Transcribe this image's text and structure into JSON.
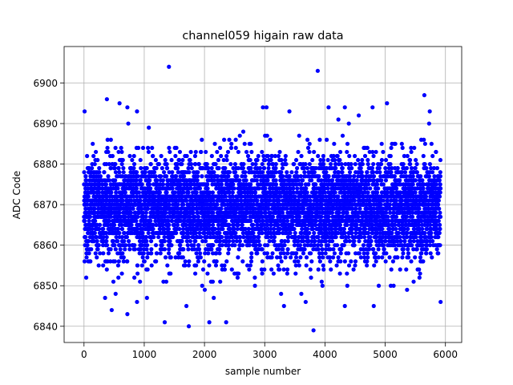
{
  "chart_data": {
    "type": "scatter",
    "title": "channel059 higain raw data",
    "xlabel": "sample number",
    "ylabel": "ADC Code",
    "xlim": [
      -330,
      6270
    ],
    "ylim": [
      6836,
      6909
    ],
    "xticks": [
      0,
      1000,
      2000,
      3000,
      4000,
      5000,
      6000
    ],
    "yticks": [
      6840,
      6850,
      6860,
      6870,
      6880,
      6890,
      6900
    ],
    "xtick_labels": [
      "0",
      "1000",
      "2000",
      "3000",
      "4000",
      "5000",
      "6000"
    ],
    "ytick_labels": [
      "6840",
      "6850",
      "6860",
      "6870",
      "6880",
      "6890",
      "6900"
    ],
    "grid": true,
    "marker_color": "#0000ff",
    "series": [
      {
        "num_points": 5920,
        "x_range": [
          0,
          5919
        ],
        "bulk_range": [
          6853,
          6886
        ],
        "center": 6869,
        "outliers": [
          {
            "x": 1410,
            "y": 6904
          },
          {
            "x": 3880,
            "y": 6903
          },
          {
            "x": 3810,
            "y": 6839
          },
          {
            "x": 1740,
            "y": 6840
          },
          {
            "x": 1340,
            "y": 6841
          },
          {
            "x": 2080,
            "y": 6841
          },
          {
            "x": 2360,
            "y": 6841
          },
          {
            "x": 720,
            "y": 6843
          },
          {
            "x": 460,
            "y": 6844
          },
          {
            "x": 1700,
            "y": 6845
          },
          {
            "x": 3320,
            "y": 6845
          },
          {
            "x": 4330,
            "y": 6845
          },
          {
            "x": 4810,
            "y": 6845
          },
          {
            "x": 5920,
            "y": 6846
          },
          {
            "x": 880,
            "y": 6846
          },
          {
            "x": 3680,
            "y": 6846
          },
          {
            "x": 5650,
            "y": 6897
          },
          {
            "x": 380,
            "y": 6896
          },
          {
            "x": 5030,
            "y": 6895
          },
          {
            "x": 590,
            "y": 6895
          },
          {
            "x": 720,
            "y": 6894
          },
          {
            "x": 2970,
            "y": 6894
          },
          {
            "x": 3030,
            "y": 6894
          },
          {
            "x": 4060,
            "y": 6894
          },
          {
            "x": 4790,
            "y": 6894
          },
          {
            "x": 4330,
            "y": 6894
          },
          {
            "x": 10,
            "y": 6893
          },
          {
            "x": 3410,
            "y": 6893
          },
          {
            "x": 880,
            "y": 6893
          },
          {
            "x": 5740,
            "y": 6893
          }
        ]
      }
    ]
  }
}
